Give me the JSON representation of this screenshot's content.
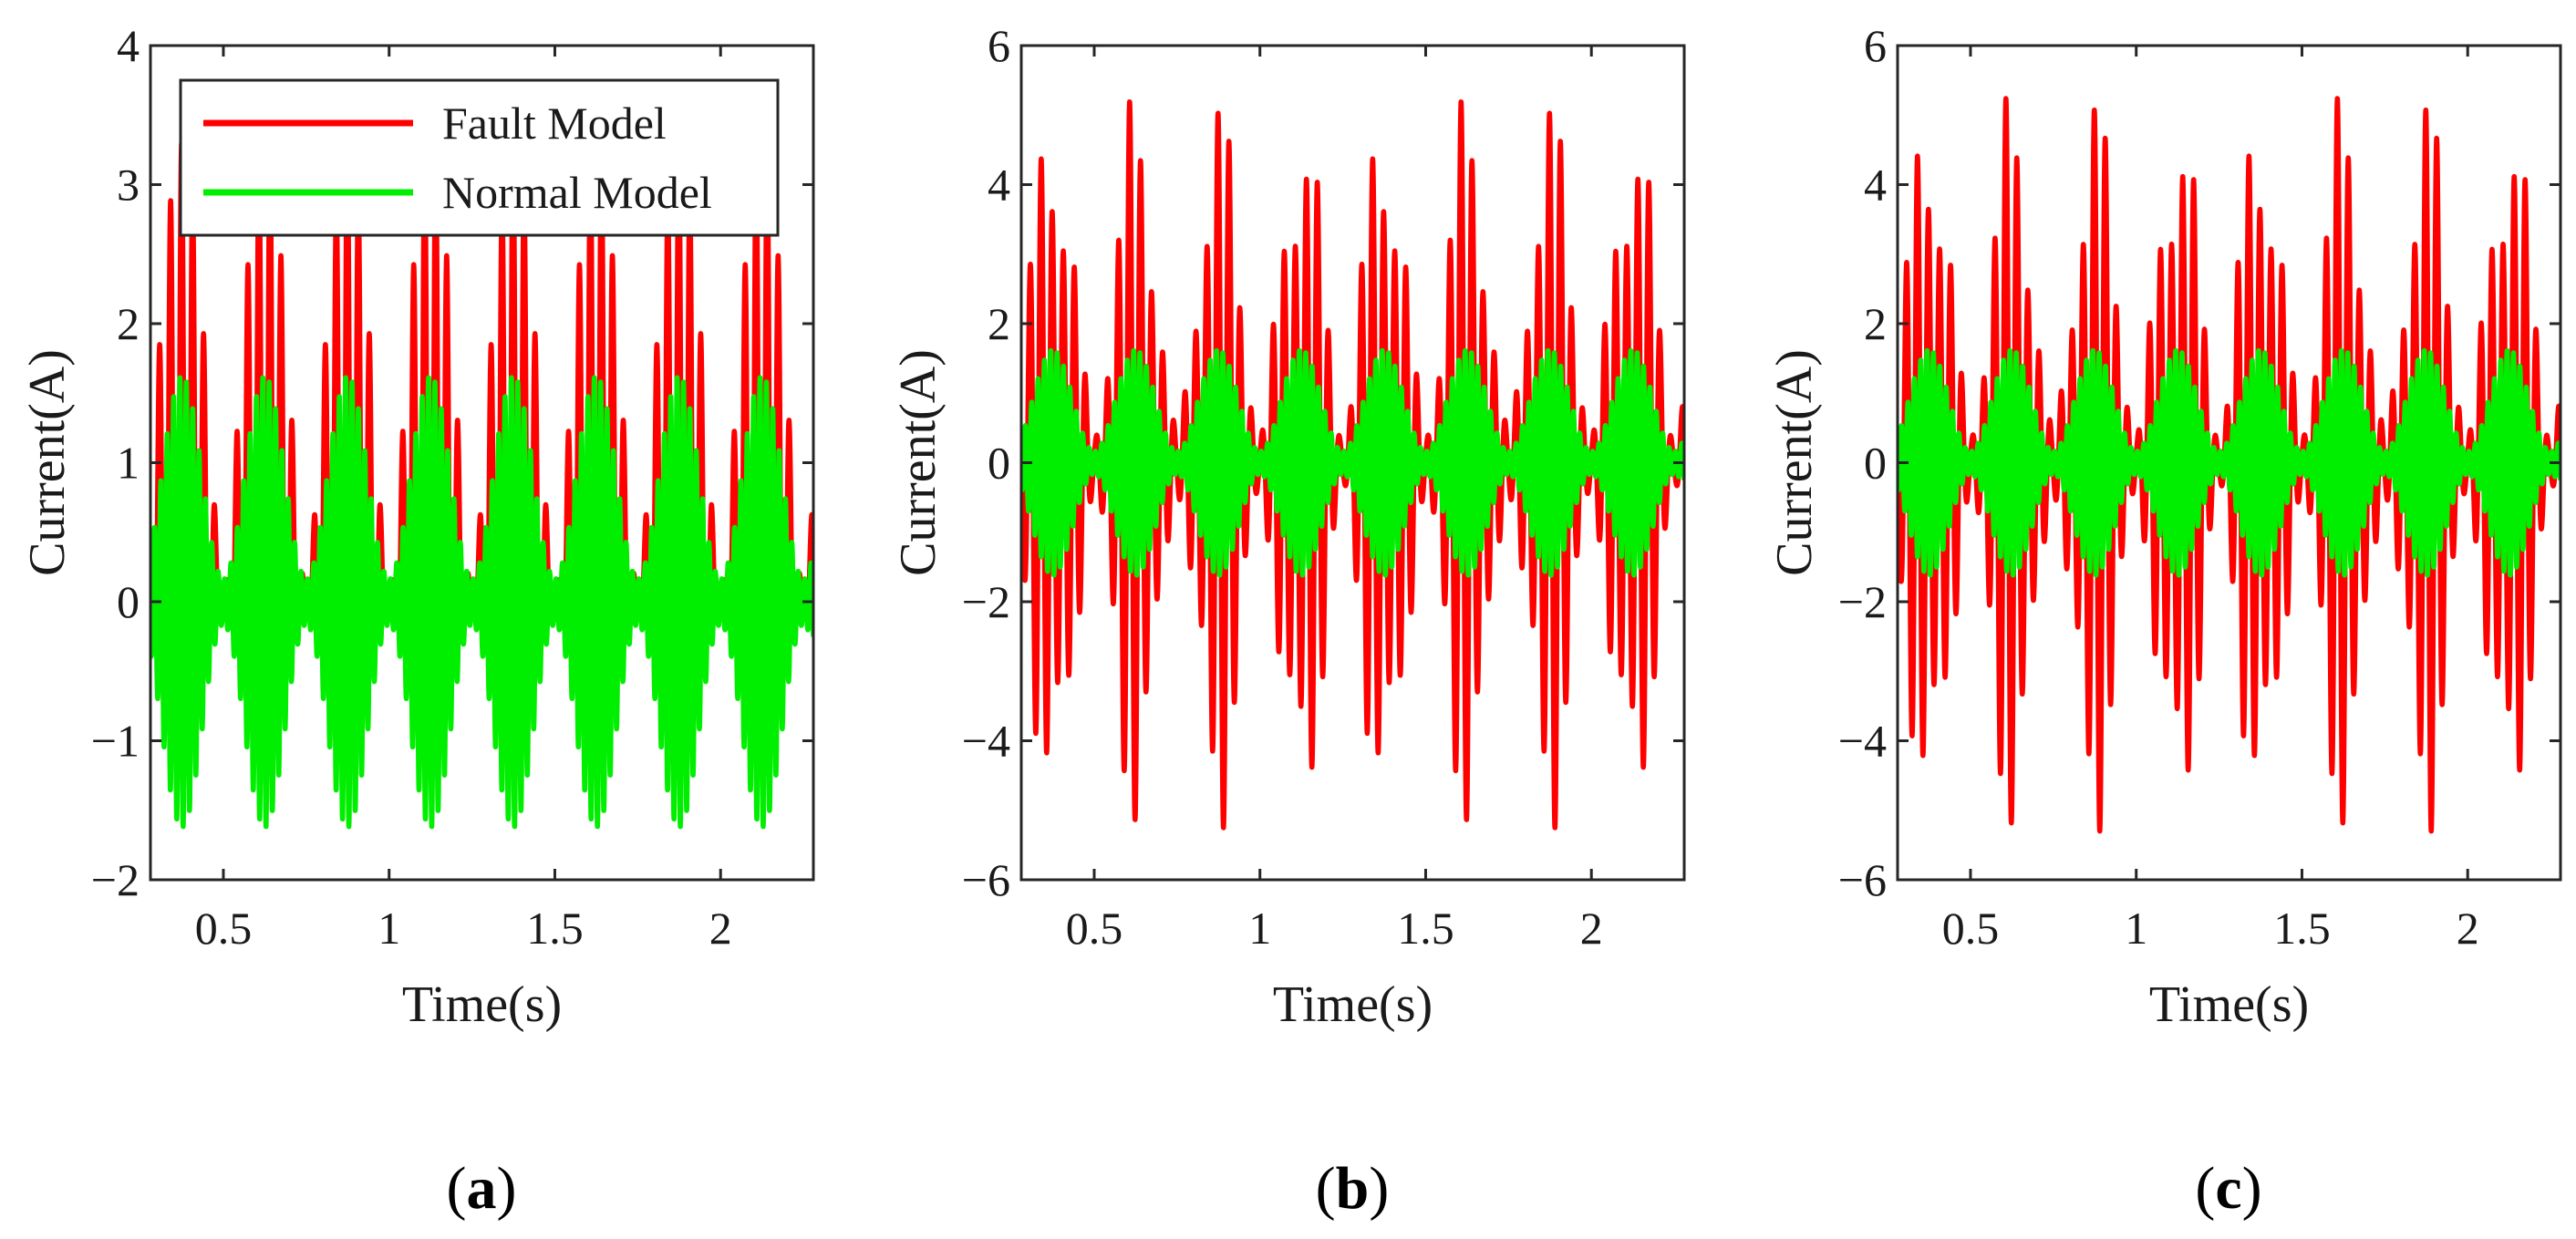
{
  "figure": {
    "colors": {
      "fault": "#ff0000",
      "normal": "#00ee00"
    }
  },
  "chart_data": [
    {
      "type": "line",
      "panel_label": "a",
      "xlabel": "Time(s)",
      "ylabel": "Current(A)",
      "xlim": [
        0.28,
        2.28
      ],
      "ylim": [
        -2,
        4
      ],
      "xticks": [
        0.5,
        1,
        1.5,
        2
      ],
      "xtick_labels": [
        "0.5",
        "1",
        "1.5",
        "2"
      ],
      "yticks": [
        -2,
        -1,
        0,
        1,
        2,
        3,
        4
      ],
      "ytick_labels": [
        "−2",
        "−1",
        "0",
        "1",
        "2",
        "3",
        "4"
      ],
      "period_s": 0.25,
      "legend": {
        "placement": "top-left",
        "entries": [
          "Fault Model",
          "Normal Model"
        ]
      },
      "series": [
        {
          "name": "Fault Model",
          "color": "#ff0000",
          "min": 0,
          "max": 3.4,
          "shape": "half-wave-rectified bursts, baseline 0, peaks 2.6-3.4 A"
        },
        {
          "name": "Normal Model",
          "color": "#00ee00",
          "min": -1.7,
          "max": 1.7,
          "shape": "modulated oscillation bursts"
        }
      ]
    },
    {
      "type": "line",
      "panel_label": "b",
      "xlabel": "Time(s)",
      "ylabel": "Current(A)",
      "xlim": [
        0.28,
        2.28
      ],
      "ylim": [
        -6,
        6
      ],
      "xticks": [
        0.5,
        1,
        1.5,
        2
      ],
      "xtick_labels": [
        "0.5",
        "1",
        "1.5",
        "2"
      ],
      "yticks": [
        -6,
        -4,
        -2,
        0,
        2,
        4,
        6
      ],
      "ytick_labels": [
        "−6",
        "−4",
        "−2",
        "0",
        "2",
        "4",
        "6"
      ],
      "period_s": 0.25,
      "series": [
        {
          "name": "Fault Model",
          "color": "#ff0000",
          "min": -5.5,
          "max": 5.4,
          "shape": "modulated oscillation bursts"
        },
        {
          "name": "Normal Model",
          "color": "#00ee00",
          "min": -1.7,
          "max": 1.7,
          "shape": "modulated oscillation bursts"
        }
      ]
    },
    {
      "type": "line",
      "panel_label": "c",
      "xlabel": "Time(s)",
      "ylabel": "Current(A)",
      "xlim": [
        0.28,
        2.28
      ],
      "ylim": [
        -6,
        6
      ],
      "xticks": [
        0.5,
        1,
        1.5,
        2
      ],
      "xtick_labels": [
        "0.5",
        "1",
        "1.5",
        "2"
      ],
      "yticks": [
        -6,
        -4,
        -2,
        0,
        2,
        4,
        6
      ],
      "ytick_labels": [
        "−6",
        "−4",
        "−2",
        "0",
        "2",
        "4",
        "6"
      ],
      "period_s": 0.25,
      "series": [
        {
          "name": "Fault Model",
          "color": "#ff0000",
          "min": -5.4,
          "max": 5.5,
          "shape": "modulated oscillation bursts"
        },
        {
          "name": "Normal Model",
          "color": "#00ee00",
          "min": -1.7,
          "max": 1.7,
          "shape": "modulated oscillation bursts"
        }
      ]
    }
  ]
}
